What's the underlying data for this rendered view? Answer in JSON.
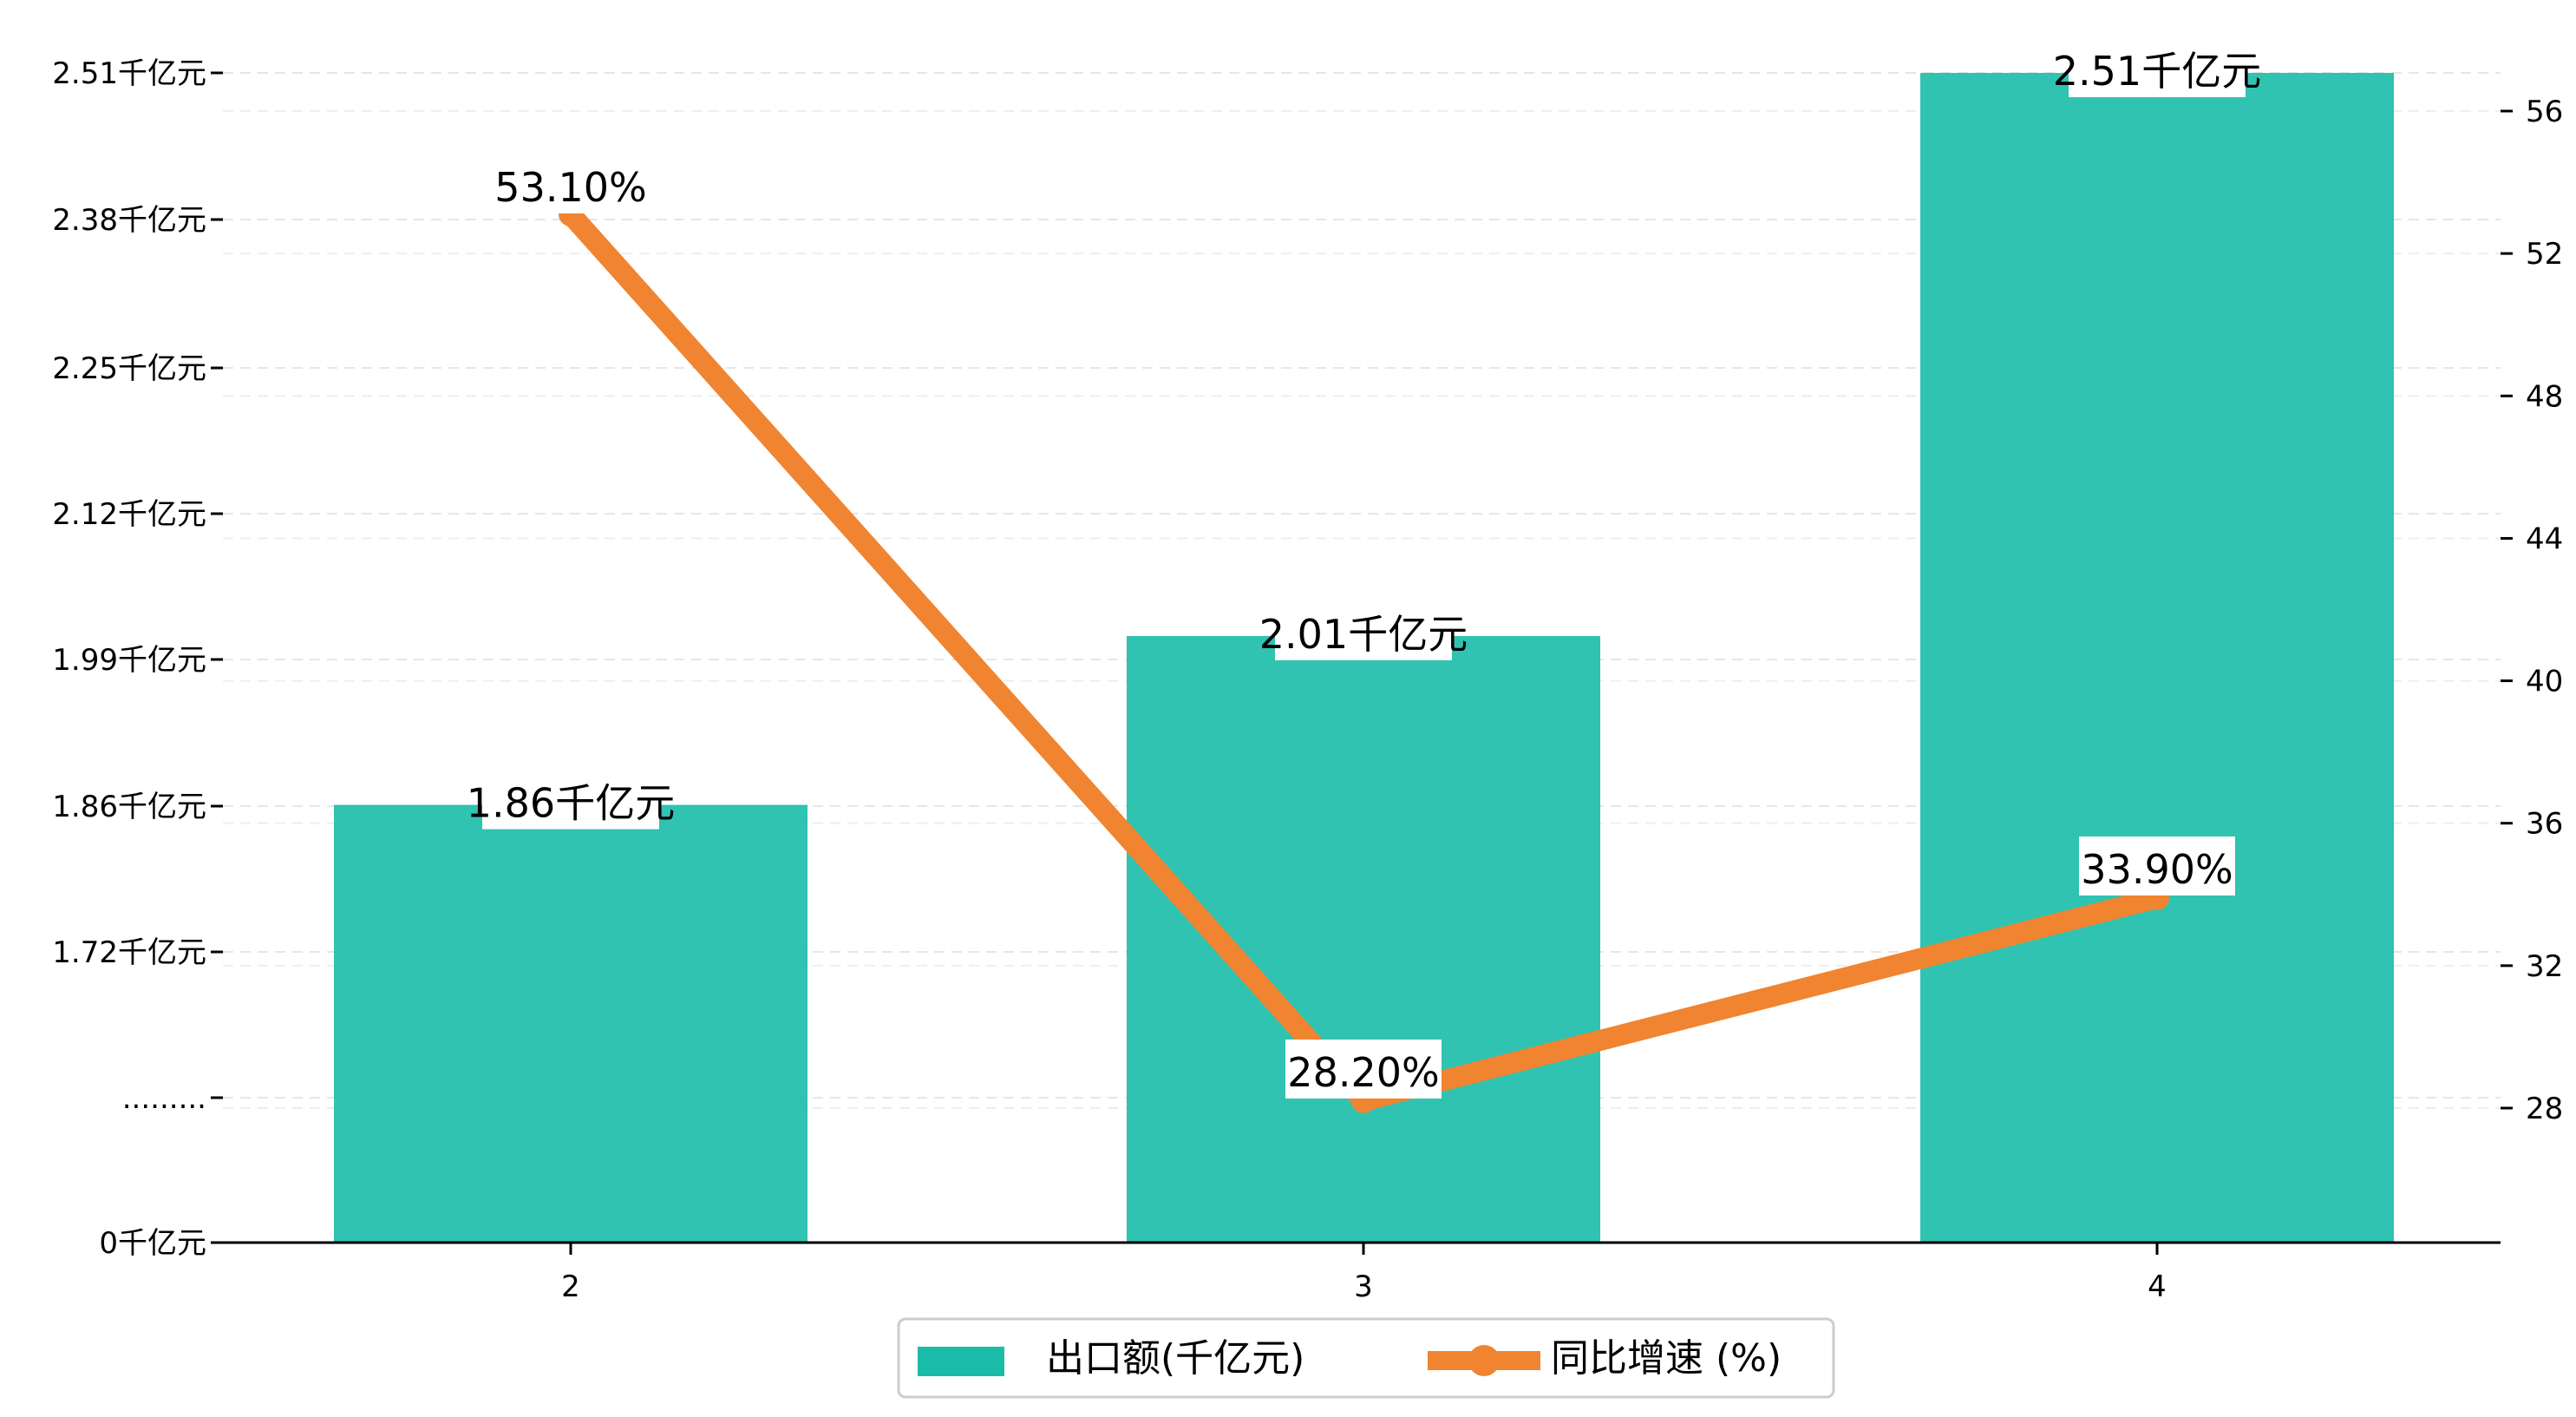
{
  "chart_data": {
    "type": "bar+line",
    "categories": [
      "2",
      "3",
      "4"
    ],
    "series": [
      {
        "name": "出口额(千亿元)",
        "type": "bar",
        "axis": "left",
        "values": [
          1.86,
          2.01,
          2.51
        ],
        "labels": [
          "1.86千亿元",
          "2.01千亿元",
          "2.51千亿元"
        ],
        "color": "#1ABCA8"
      },
      {
        "name": "同比增速 (%)",
        "type": "line",
        "axis": "right",
        "values": [
          53.1,
          28.2,
          33.9
        ],
        "labels": [
          "53.10%",
          "28.20%",
          "33.90%"
        ],
        "color": "#F08430"
      }
    ],
    "left_axis": {
      "ticks": [
        0,
        1.6,
        1.72,
        1.86,
        1.99,
        2.12,
        2.25,
        2.38,
        2.51
      ],
      "tick_labels": [
        "0千亿元",
        ".........",
        "1.72千亿元",
        "1.86千亿元",
        "1.99千亿元",
        "2.12千亿元",
        "2.25千亿元",
        "2.38千亿元",
        "2.51千亿元"
      ],
      "ylim": [
        0,
        2.51
      ]
    },
    "right_axis": {
      "ticks": [
        28,
        32,
        36,
        40,
        44,
        48,
        52,
        56
      ],
      "ylim": [
        24,
        57.2
      ]
    },
    "grid": "horizontal dashed",
    "legend_position": "bottom-center"
  }
}
